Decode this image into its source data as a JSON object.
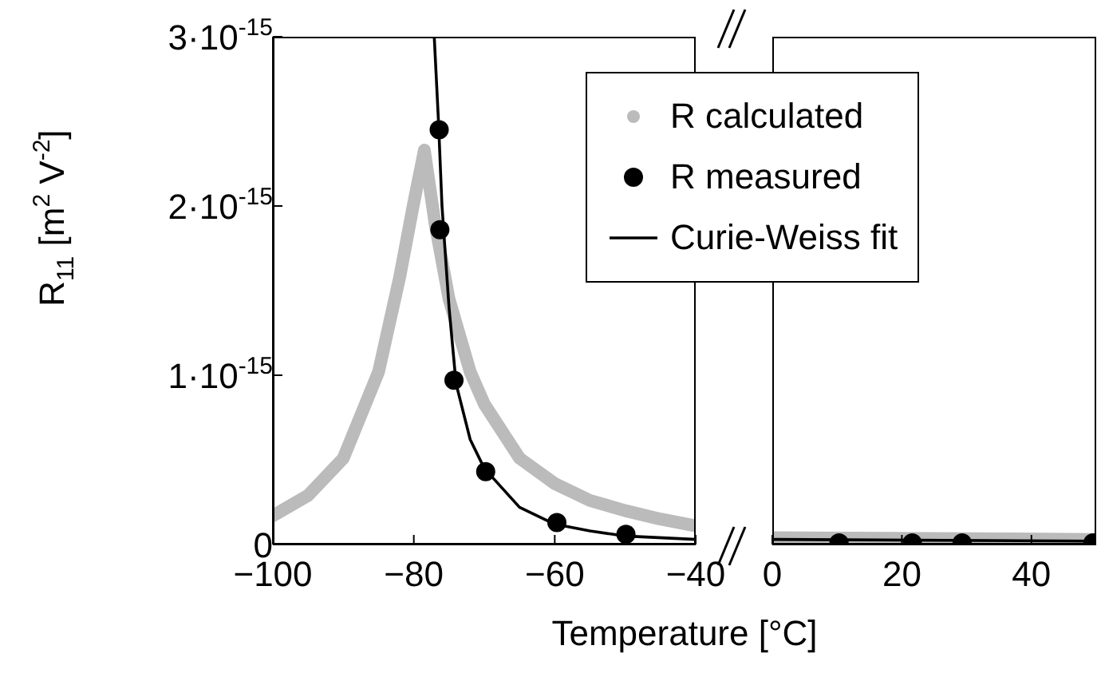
{
  "chart_data": [
    {
      "type": "line",
      "xlabel": "Temperature [°C]",
      "ylabel": "R$_{11}$ [m$^{2}$ V$^{-2}$]",
      "xlim": [
        -100,
        -40
      ],
      "xticks": [
        -100,
        -80,
        -60,
        -40
      ],
      "ylim": [
        0,
        3e-15
      ],
      "yticks": [
        {
          "value": 0,
          "label": "0"
        },
        {
          "value": 1e-15,
          "label": "1·10$^{-15}$"
        },
        {
          "value": 2e-15,
          "label": "2·10$^{-15}$"
        },
        {
          "value": 3e-15,
          "label": "3·10$^{-15}$"
        }
      ],
      "legend": "top right",
      "grid": false,
      "series": [
        {
          "name": "R calculated",
          "color": "#bbbbbb",
          "x": [
            -100,
            -95,
            -90,
            -85,
            -82,
            -80,
            -78.5,
            -77,
            -75,
            -72,
            -70,
            -65,
            -60,
            -55,
            -50,
            -45,
            -40
          ],
          "values": [
            1.7e-16,
            2.9e-16,
            5.1e-16,
            1.02e-15,
            1.58e-15,
            2.02e-15,
            2.33e-15,
            1.9e-15,
            1.45e-15,
            1.02e-15,
            8.3e-16,
            5.1e-16,
            3.6e-16,
            2.6e-16,
            2e-16,
            1.5e-16,
            1.1e-16
          ]
        },
        {
          "name": "R measured",
          "type": "scatter",
          "color": "#000000",
          "x": [
            -76.4,
            -76.3,
            -74.3,
            -69.8,
            -59.7,
            -49.9
          ],
          "values": [
            2.45e-15,
            1.86e-15,
            9.7e-16,
            4.3e-16,
            1.3e-16,
            6e-17
          ]
        },
        {
          "name": "Curie-Weiss fit",
          "color": "#000000",
          "x": [
            -77.1,
            -76.5,
            -76,
            -75,
            -74,
            -72,
            -70,
            -65,
            -60,
            -55,
            -50,
            -40
          ],
          "values": [
            3e-15,
            2.5e-15,
            2e-15,
            1.4e-15,
            9.5e-16,
            6.2e-16,
            4.5e-16,
            2.2e-16,
            1.2e-16,
            8e-17,
            5e-17,
            3e-17
          ]
        }
      ]
    },
    {
      "type": "line",
      "xlim": [
        0,
        50
      ],
      "xticks": [
        0,
        20,
        40
      ],
      "ylim": [
        0,
        3e-15
      ],
      "tick_labels": "x",
      "series": [
        {
          "color": "#bbbbbb",
          "x": [
            0,
            50
          ],
          "values": [
            4e-17,
            3e-17
          ]
        },
        {
          "color": "#000000",
          "x": [
            0,
            50
          ],
          "values": [
            3e-17,
            2e-17
          ]
        },
        {
          "type": "scatter",
          "color": "#000000",
          "x": [
            10.3,
            21.6,
            29.3,
            49.5
          ],
          "values": [
            1e-17,
            1e-17,
            1e-17,
            1e-17
          ]
        }
      ]
    }
  ]
}
